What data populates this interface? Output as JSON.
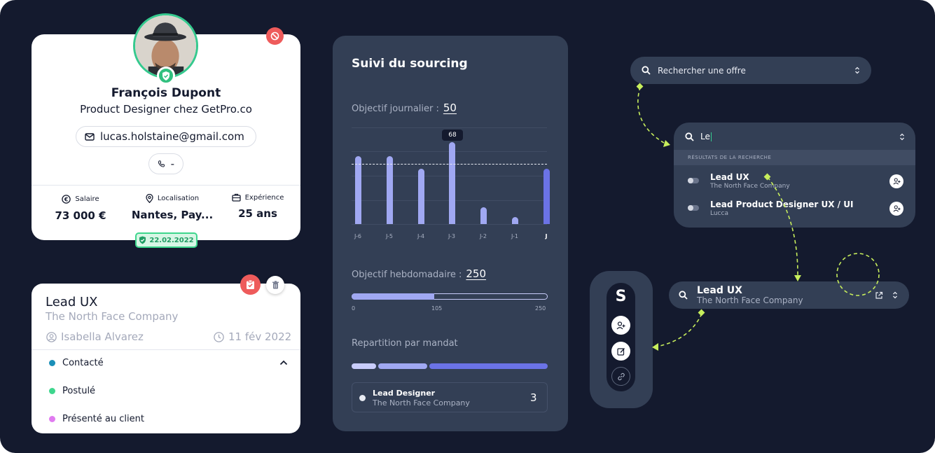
{
  "colors": {
    "background": "#141a2e",
    "panel": "#333f55",
    "accent_green": "#35c98e",
    "accent_red": "#ee5b5b",
    "bar_light": "#a0a8f2",
    "bar_active": "#6b73e6",
    "connector": "#c7ee5c"
  },
  "profile": {
    "name": "François Dupont",
    "title": "Product Designer chez GetPro.co",
    "email": "lucas.holstaine@gmail.com",
    "phone": "-",
    "stats": [
      {
        "label": "Salaire",
        "value": "73 000 €",
        "icon": "euro-icon"
      },
      {
        "label": "Localisation",
        "value": "Nantes, Pay...",
        "icon": "location-pin-icon"
      },
      {
        "label": "Expérience",
        "value": "25 ans",
        "icon": "briefcase-icon"
      }
    ],
    "date_badge": "22.02.2022"
  },
  "job_card": {
    "title": "Lead UX",
    "company": "The North Face Company",
    "recruiter": "Isabella Alvarez",
    "date": "11 fév 2022",
    "statuses": [
      {
        "label": "Contacté",
        "color": "#1b8fb8"
      },
      {
        "label": "Postulé",
        "color": "#3ed68d"
      },
      {
        "label": "Présenté au client",
        "color": "#e07bf0"
      }
    ]
  },
  "sourcing": {
    "title": "Suivi du sourcing",
    "daily_label": "Objectif journalier :",
    "daily_value": "50",
    "weekly_label": "Objectif hebdomadaire :",
    "weekly_value": "250",
    "weekly_ticks": [
      "0",
      "105",
      "250"
    ],
    "weekly_progress": 105,
    "repartition_label": "Repartition par mandat",
    "mandat": {
      "title": "Lead Designer",
      "company": "The North Face Company",
      "count": "3"
    }
  },
  "chart_data": {
    "type": "bar",
    "categories": [
      "J-6",
      "J-5",
      "J-4",
      "J-3",
      "J-2",
      "J-1",
      "J"
    ],
    "values": [
      56,
      56,
      46,
      68,
      14,
      6,
      46
    ],
    "target": 50,
    "highlighted_label": "68",
    "active_category": "J",
    "ylim": [
      0,
      80
    ]
  },
  "search": {
    "placeholder": "Rechercher une offre",
    "query": "Le",
    "results_header": "RÉSULTATS DE LA RECHERCHE",
    "results": [
      {
        "title": "Lead UX",
        "company": "The North Face Company"
      },
      {
        "title": "Lead Product Designer UX / UI",
        "company": "Lucca"
      }
    ],
    "selected": {
      "title": "Lead UX",
      "company": "The North Face Company"
    }
  },
  "toolbar": {
    "logo": "S"
  }
}
